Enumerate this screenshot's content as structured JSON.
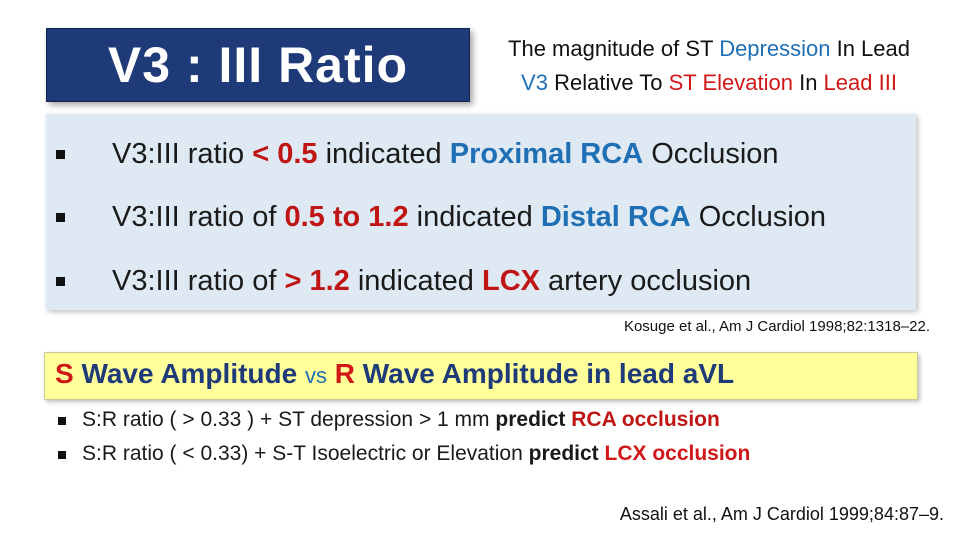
{
  "title": "V3 : III Ratio",
  "subtitle": {
    "line1": {
      "p1": "The magnitude of ST ",
      "p2": "Depression",
      "p3": " In Lead"
    },
    "line2": {
      "p1": "V3",
      "p2": " Relative To ",
      "p3": "ST Elevation",
      "p4": " In ",
      "p5": "Lead III"
    }
  },
  "ratio_items": [
    {
      "a": "V3:III ratio ",
      "b": "< 0.5",
      "c": " indicated ",
      "d": "Proximal RCA",
      "e": " Occlusion"
    },
    {
      "a": "V3:III ratio of ",
      "b": "0.5 to 1.2",
      "c": " indicated ",
      "d": "Distal RCA",
      "e": " Occlusion"
    },
    {
      "a": "V3:III ratio of ",
      "b": "> 1.2",
      "c": " indicated ",
      "d": "LCX",
      "e": " artery occlusion"
    }
  ],
  "citation1": "Kosuge  et al., Am J Cardiol 1998;82:1318–22.",
  "heading2": {
    "s": "S",
    "p1": " Wave Amplitude ",
    "vs": "vs",
    "r": " R",
    "p2": " Wave Amplitude in lead aVL"
  },
  "sr_items": [
    {
      "a": "S:R ratio ( >  0.33 ) + ST depression > 1 mm ",
      "b": "predict",
      "c": " RCA occlusion"
    },
    {
      "a": "S:R ratio ( < 0.33)  + S-T Isoelectric or Elevation ",
      "b": "predict",
      "c": " LCX occlusion"
    }
  ],
  "citation2": "Assali et al., Am J Cardiol 1999;84:87–9.",
  "colors": {
    "title_bg": "#1e3a78",
    "panel_bg": "#dfe9f3",
    "highlight_bg": "#ffff9c",
    "blue": "#1f6fb5",
    "red": "#d01818"
  }
}
